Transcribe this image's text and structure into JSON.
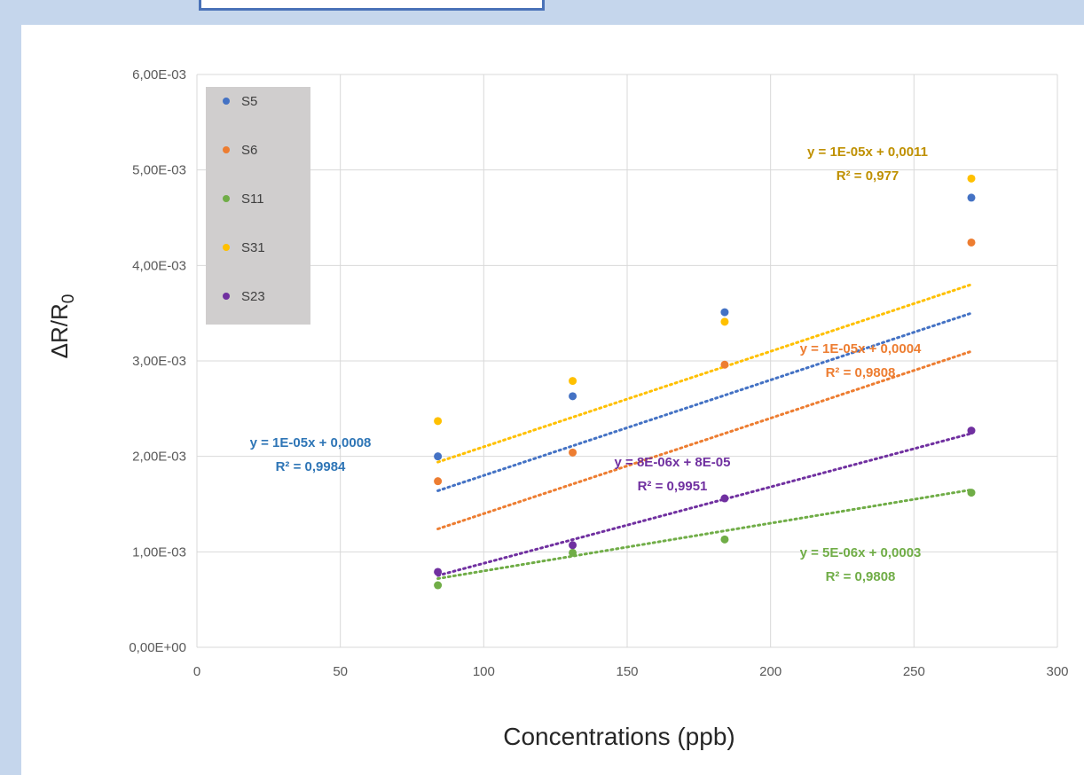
{
  "chart_data": {
    "type": "scatter",
    "xlabel": "Concentrations (ppb)",
    "ylabel": "ΔR/R",
    "ylabel_sub": "0",
    "xlim": [
      0,
      300
    ],
    "ylim": [
      0,
      0.006
    ],
    "xticks": [
      0,
      50,
      100,
      150,
      200,
      250,
      300
    ],
    "xtick_labels": [
      "0",
      "50",
      "100",
      "150",
      "200",
      "250",
      "300"
    ],
    "yticks": [
      0,
      0.001,
      0.002,
      0.003,
      0.004,
      0.005,
      0.006
    ],
    "ytick_labels": [
      "0,00E+00",
      "1,00E-03",
      "2,00E-03",
      "3,00E-03",
      "4,00E-03",
      "5,00E-03",
      "6,00E-03"
    ],
    "grid": true,
    "legend_position": "top-left",
    "series": [
      {
        "name": "S5",
        "color": "#4472C4",
        "x": [
          84,
          131,
          184,
          270
        ],
        "y": [
          0.002,
          0.00263,
          0.00351,
          0.00471
        ],
        "trend": {
          "slope": 1e-05,
          "intercept": 0.0008
        },
        "equation": "y = 1E-05x + 0,0008",
        "r2": "R² = 0,9984",
        "label_color": "#2E75B6"
      },
      {
        "name": "S6",
        "color": "#ED7D31",
        "x": [
          84,
          131,
          184,
          270
        ],
        "y": [
          0.00174,
          0.00204,
          0.00296,
          0.00424
        ],
        "trend": {
          "slope": 1e-05,
          "intercept": 0.0004
        },
        "equation": "y = 1E-05x + 0,0004",
        "r2": "R² = 0,9808",
        "label_color": "#ED7D31"
      },
      {
        "name": "S11",
        "color": "#70AD47",
        "x": [
          84,
          131,
          184,
          270
        ],
        "y": [
          0.00065,
          0.00099,
          0.00113,
          0.00162
        ],
        "trend": {
          "slope": 5e-06,
          "intercept": 0.0003
        },
        "equation": "y = 5E-06x + 0,0003",
        "r2": "R² = 0,9808",
        "label_color": "#70AD47"
      },
      {
        "name": "S31",
        "color": "#FFC000",
        "x": [
          84,
          131,
          184,
          270
        ],
        "y": [
          0.00237,
          0.00279,
          0.00341,
          0.00491
        ],
        "trend": {
          "slope": 1e-05,
          "intercept": 0.0011
        },
        "equation": "y = 1E-05x + 0,0011",
        "r2": "R² = 0,977",
        "label_color": "#BF9000"
      },
      {
        "name": "S23",
        "color": "#7030A0",
        "x": [
          84,
          131,
          184,
          270
        ],
        "y": [
          0.00079,
          0.00107,
          0.00156,
          0.00227
        ],
        "trend": {
          "slope": 8e-06,
          "intercept": 8e-05
        },
        "equation": "y = 8E-06x + 8E-05",
        "r2": "R² = 0,9951",
        "label_color": "#7030A0"
      }
    ]
  }
}
